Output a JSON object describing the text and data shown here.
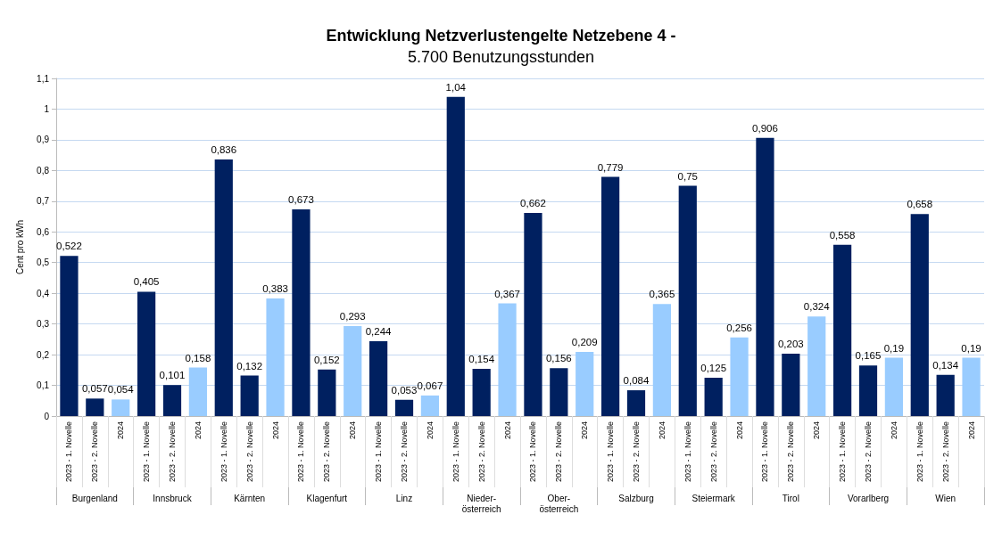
{
  "chart_data": {
    "type": "bar",
    "title": "Entwicklung Netzverlustengelte Netzebene 4 -",
    "subtitle": "5.700 Benutzungsstunden",
    "ylabel": "Cent pro kWh",
    "categories": [
      "Burgenland",
      "Innsbruck",
      "Kärnten",
      "Klagenfurt",
      "Linz",
      "Nieder-\nösterreich",
      "Ober-\nösterreich",
      "Salzburg",
      "Steiermark",
      "Tirol",
      "Vorarlberg",
      "Wien"
    ],
    "series": [
      {
        "name": "2023 - 1. Novelle",
        "color": "#002060",
        "values": [
          0.522,
          0.405,
          0.836,
          0.673,
          0.244,
          1.04,
          0.662,
          0.779,
          0.75,
          0.906,
          0.558,
          0.658
        ],
        "value_labels": [
          "0,522",
          "0,405",
          "0,836",
          "0,673",
          "0,244",
          "1,04",
          "0,662",
          "0,779",
          "0,75",
          "0,906",
          "0,558",
          "0,658"
        ]
      },
      {
        "name": "2023 - 2. Novelle",
        "color": "#002060",
        "values": [
          0.057,
          0.101,
          0.132,
          0.152,
          0.053,
          0.154,
          0.156,
          0.084,
          0.125,
          0.203,
          0.165,
          0.134
        ],
        "value_labels": [
          "0,057",
          "0,101",
          "0,132",
          "0,152",
          "0,053",
          "0,154",
          "0,156",
          "0,084",
          "0,125",
          "0,203",
          "0,165",
          "0,134"
        ]
      },
      {
        "name": "2024",
        "color": "#99ccff",
        "values": [
          0.054,
          0.158,
          0.383,
          0.293,
          0.067,
          0.367,
          0.209,
          0.365,
          0.256,
          0.324,
          0.19,
          0.19
        ],
        "value_labels": [
          "0,054",
          "0,158",
          "0,383",
          "0,293",
          "0,067",
          "0,367",
          "0,209",
          "0,365",
          "0,256",
          "0,324",
          "0,19",
          "0,19"
        ]
      }
    ],
    "ylim": [
      0,
      1.1
    ],
    "yticks": [
      0,
      {
        "value": 0.1,
        "label": "0,1"
      },
      {
        "value": 0.2,
        "label": "0,2"
      },
      {
        "value": 0.3,
        "label": "0,3"
      },
      {
        "value": 0.4,
        "label": "0,4"
      },
      {
        "value": 0.5,
        "label": "0,5"
      },
      {
        "value": 0.6,
        "label": "0,6"
      },
      {
        "value": 0.7,
        "label": "0,7"
      },
      {
        "value": 0.8,
        "label": "0,8"
      },
      {
        "value": 0.9,
        "label": "0,9"
      },
      1,
      {
        "value": 1.1,
        "label": "1,1"
      }
    ],
    "grid": "y",
    "legend": false
  }
}
